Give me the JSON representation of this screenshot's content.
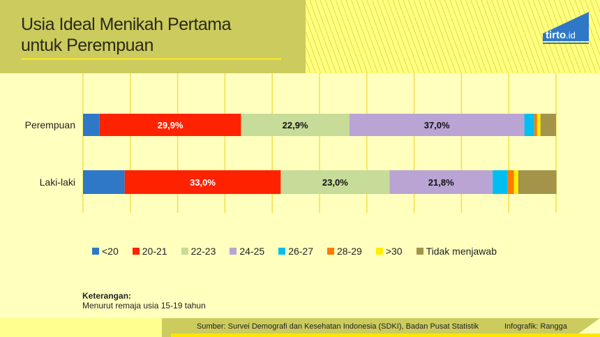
{
  "title_line1": "Usia Ideal Menikah Pertama",
  "title_line2": "untuk Perempuan",
  "logo_text": "tirto.id",
  "chart_data": {
    "type": "bar",
    "orientation": "horizontal-stacked-100",
    "categories": [
      "Perempuan",
      "Laki-laki"
    ],
    "xlim": [
      0,
      100
    ],
    "grid": true,
    "legend_placement": "bottom",
    "series": [
      {
        "name": "<20",
        "color": "#2f78c8",
        "values": [
          3.5,
          8.8
        ]
      },
      {
        "name": "20-21",
        "color": "#ff2200",
        "values": [
          29.9,
          33.0
        ],
        "labels": [
          "29,9%",
          "33,0%"
        ]
      },
      {
        "name": "22-23",
        "color": "#c6dc98",
        "values": [
          22.9,
          23.0
        ],
        "labels": [
          "22,9%",
          "23,0%"
        ]
      },
      {
        "name": "24-25",
        "color": "#b9a4d4",
        "values": [
          37.0,
          21.8
        ],
        "labels": [
          "37,0%",
          "21,8%"
        ]
      },
      {
        "name": "26-27",
        "color": "#00bff0",
        "values": [
          2.1,
          3.2
        ]
      },
      {
        "name": "28-29",
        "color": "#ff7a00",
        "values": [
          0.6,
          1.3
        ]
      },
      {
        "name": ">30",
        "color": "#ffee00",
        "values": [
          0.7,
          0.9
        ]
      },
      {
        "name": "Tidak menjawab",
        "color": "#a3944a",
        "values": [
          3.3,
          8.1
        ]
      }
    ]
  },
  "note_heading": "Keterangan:",
  "note_text": "Menurut remaja usia 15-19 tahun",
  "source": "Sumber: Survei Demografi dan Kesehatan Indonesia (SDKI), Badan Pusat Statistik",
  "credit": "Infografik: Rangga"
}
